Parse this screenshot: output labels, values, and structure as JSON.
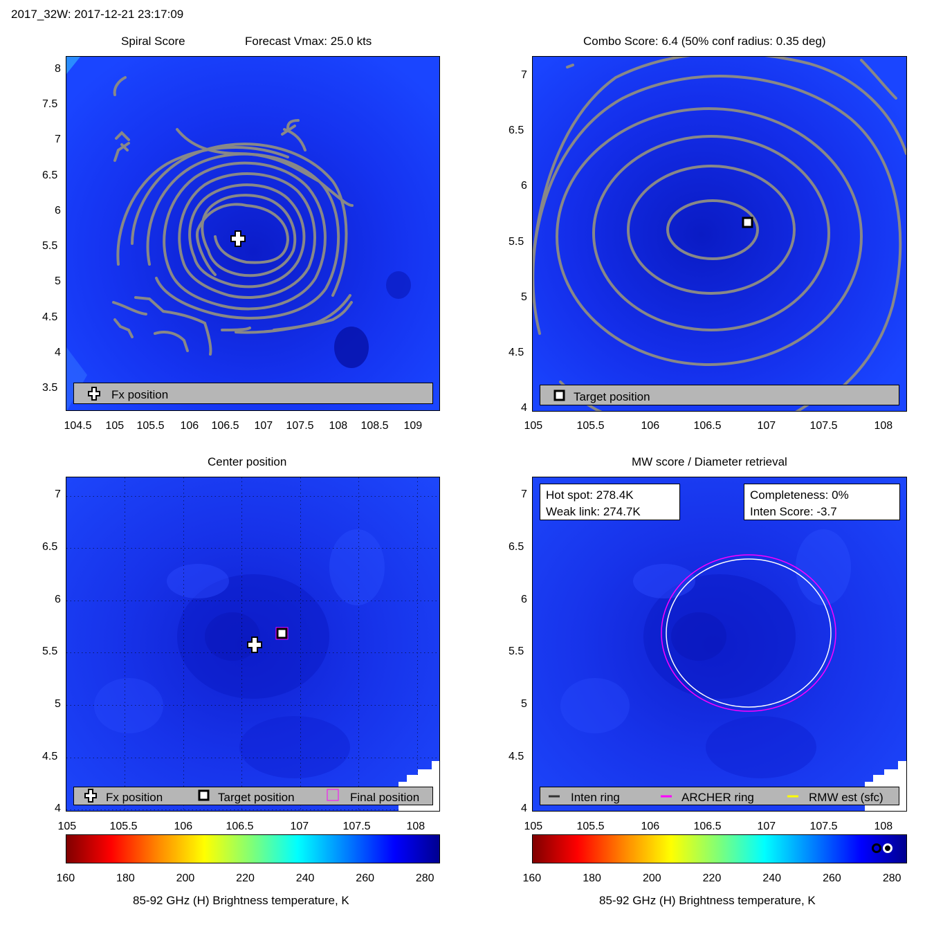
{
  "header": {
    "storm_time": "2017_32W: 2017-12-21 23:17:09"
  },
  "panels": {
    "spiral": {
      "title_left": "Spiral Score",
      "title_right": "Forecast Vmax: 25.0 kts",
      "xticks": [
        "104.5",
        "105",
        "105.5",
        "106",
        "106.5",
        "107",
        "107.5",
        "108",
        "108.5",
        "109"
      ],
      "yticks": [
        "8",
        "7.5",
        "7",
        "6.5",
        "6",
        "5.5",
        "5",
        "4.5",
        "4",
        "3.5"
      ],
      "legend": {
        "fx_label": "Fx position"
      }
    },
    "combo": {
      "title": "Combo Score: 6.4  (50% conf radius: 0.35 deg)",
      "xticks": [
        "105",
        "105.5",
        "106",
        "106.5",
        "107",
        "107.5",
        "108"
      ],
      "yticks": [
        "7",
        "6.5",
        "6",
        "5.5",
        "5",
        "4.5",
        "4"
      ],
      "legend": {
        "target_label": "Target position"
      }
    },
    "center": {
      "title": "Center position",
      "xticks": [
        "105",
        "105.5",
        "106",
        "106.5",
        "107",
        "107.5",
        "108"
      ],
      "yticks": [
        "7",
        "6.5",
        "6",
        "5.5",
        "5",
        "4.5",
        "4"
      ],
      "legend": {
        "fx_label": "Fx position",
        "target_label": "Target position",
        "final_label": "Final position"
      }
    },
    "mw": {
      "title": "MW score / Diameter retrieval",
      "xticks": [
        "105",
        "105.5",
        "106",
        "106.5",
        "107",
        "107.5",
        "108"
      ],
      "yticks": [
        "7",
        "6.5",
        "6",
        "5.5",
        "5",
        "4.5",
        "4"
      ],
      "hot_spot": "Hot spot: 278.4K",
      "weak_link": "Weak link: 274.7K",
      "completeness": "Completeness: 0%",
      "inten_score": "Inten Score: -3.7",
      "legend": {
        "inten_label": "Inten ring",
        "archer_label": "ARCHER ring",
        "rmw_label": "RMW est (sfc)"
      }
    }
  },
  "colorbar": {
    "ticks": [
      "160",
      "180",
      "200",
      "220",
      "240",
      "260",
      "280"
    ],
    "label": "85-92 GHz (H) Brightness temperature, K",
    "range": [
      160,
      285
    ]
  },
  "colors": {
    "field_blue": "#1a3cff",
    "dark_blue": "#0e1fd6",
    "contour_gray": "#888888",
    "archer_ring": "#ff00ff",
    "inten_ring": "#333333",
    "rmw_ring": "#ffff00"
  },
  "chart_data": [
    {
      "type": "heatmap",
      "title": "Spiral Score",
      "subtitle": "Forecast Vmax: 25.0 kts",
      "xlim": [
        104.3,
        109.3
      ],
      "ylim": [
        3.2,
        8.2
      ],
      "fx_position": {
        "lon": 106.6,
        "lat": 5.58
      },
      "contour_center": {
        "lon": 106.6,
        "lat": 5.6
      },
      "legend": [
        "Fx position"
      ]
    },
    {
      "type": "heatmap",
      "title": "Combo Score: 6.4  (50% conf radius: 0.35 deg)",
      "xlim": [
        105.0,
        108.2
      ],
      "ylim": [
        4.0,
        7.2
      ],
      "target_position": {
        "lon": 106.85,
        "lat": 5.68
      },
      "contour_center": {
        "lon": 106.6,
        "lat": 5.6
      },
      "legend": [
        "Target position"
      ]
    },
    {
      "type": "heatmap",
      "title": "Center position",
      "xlim": [
        105.0,
        108.2
      ],
      "ylim": [
        4.0,
        7.2
      ],
      "fx_position": {
        "lon": 106.6,
        "lat": 5.58
      },
      "target_position": {
        "lon": 106.85,
        "lat": 5.68
      },
      "final_position": {
        "lon": 106.85,
        "lat": 5.68
      },
      "legend": [
        "Fx position",
        "Target position",
        "Final position"
      ]
    },
    {
      "type": "heatmap",
      "title": "MW score / Diameter retrieval",
      "xlim": [
        105.0,
        108.2
      ],
      "ylim": [
        4.0,
        7.2
      ],
      "ring_center": {
        "lon": 106.85,
        "lat": 5.67
      },
      "archer_ring_radius_deg": 0.74,
      "rmw_ring_radius_deg": 0.7,
      "hot_spot_K": 278.4,
      "weak_link_K": 274.7,
      "completeness_pct": 0,
      "inten_score": -3.7,
      "legend": [
        "Inten ring",
        "ARCHER ring",
        "RMW est (sfc)"
      ]
    }
  ]
}
